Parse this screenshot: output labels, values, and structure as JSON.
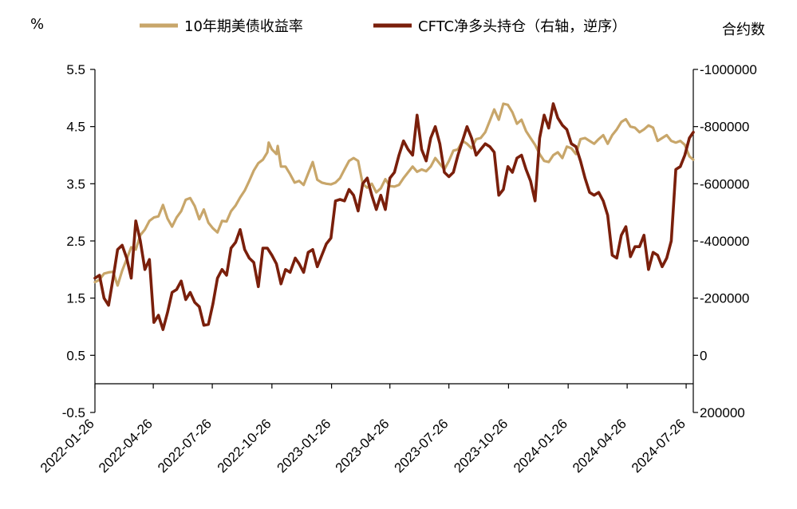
{
  "chart_data": {
    "type": "line",
    "left_axis_unit": "%",
    "right_axis_unit": "合约数",
    "left_ylim": [
      -0.5,
      5.5
    ],
    "left_ticks": [
      "5.5",
      "4.5",
      "3.5",
      "2.5",
      "1.5",
      "0.5",
      "-0.5"
    ],
    "right_ylim": [
      -1000000,
      200000
    ],
    "right_ticks": [
      "-1000000",
      "-800000",
      "-600000",
      "-400000",
      "-200000",
      "0",
      "200000"
    ],
    "right_axis_reversed": true,
    "x_ticks": [
      "2022-01-26",
      "2022-04-26",
      "2022-07-26",
      "2022-10-26",
      "2023-01-26",
      "2023-04-26",
      "2023-07-26",
      "2023-10-26",
      "2024-01-26",
      "2024-04-26",
      "2024-07-26"
    ],
    "x_range": [
      "2022-01-26",
      "2024-08-06"
    ],
    "colors": {
      "yield": "#C8A66A",
      "cftc": "#7A1F0B"
    },
    "series": [
      {
        "name": "10年期美债收益率",
        "axis": "left",
        "points": [
          [
            "2022-01-26",
            1.78
          ],
          [
            "2022-02-02",
            1.82
          ],
          [
            "2022-02-09",
            1.93
          ],
          [
            "2022-02-16",
            1.95
          ],
          [
            "2022-02-23",
            1.96
          ],
          [
            "2022-03-02",
            1.72
          ],
          [
            "2022-03-09",
            1.98
          ],
          [
            "2022-03-16",
            2.18
          ],
          [
            "2022-03-23",
            2.39
          ],
          [
            "2022-03-30",
            2.35
          ],
          [
            "2022-04-06",
            2.6
          ],
          [
            "2022-04-13",
            2.7
          ],
          [
            "2022-04-20",
            2.85
          ],
          [
            "2022-04-27",
            2.91
          ],
          [
            "2022-05-04",
            2.93
          ],
          [
            "2022-05-11",
            3.13
          ],
          [
            "2022-05-18",
            2.89
          ],
          [
            "2022-05-25",
            2.75
          ],
          [
            "2022-06-01",
            2.91
          ],
          [
            "2022-06-08",
            3.02
          ],
          [
            "2022-06-15",
            3.22
          ],
          [
            "2022-06-22",
            3.25
          ],
          [
            "2022-06-29",
            3.11
          ],
          [
            "2022-07-06",
            2.88
          ],
          [
            "2022-07-13",
            3.05
          ],
          [
            "2022-07-20",
            2.82
          ],
          [
            "2022-07-27",
            2.72
          ],
          [
            "2022-08-03",
            2.65
          ],
          [
            "2022-08-10",
            2.85
          ],
          [
            "2022-08-17",
            2.84
          ],
          [
            "2022-08-24",
            3.02
          ],
          [
            "2022-08-31",
            3.12
          ],
          [
            "2022-09-07",
            3.26
          ],
          [
            "2022-09-14",
            3.38
          ],
          [
            "2022-09-21",
            3.55
          ],
          [
            "2022-09-28",
            3.73
          ],
          [
            "2022-10-05",
            3.86
          ],
          [
            "2022-10-12",
            3.92
          ],
          [
            "2022-10-19",
            4.05
          ],
          [
            "2022-10-21",
            4.22
          ],
          [
            "2022-10-26",
            4.1
          ],
          [
            "2022-11-02",
            4.02
          ],
          [
            "2022-11-04",
            4.16
          ],
          [
            "2022-11-09",
            3.8
          ],
          [
            "2022-11-16",
            3.8
          ],
          [
            "2022-11-23",
            3.67
          ],
          [
            "2022-11-30",
            3.52
          ],
          [
            "2022-12-07",
            3.55
          ],
          [
            "2022-12-14",
            3.48
          ],
          [
            "2022-12-21",
            3.68
          ],
          [
            "2022-12-28",
            3.88
          ],
          [
            "2023-01-04",
            3.57
          ],
          [
            "2023-01-11",
            3.52
          ],
          [
            "2023-01-18",
            3.5
          ],
          [
            "2023-01-25",
            3.49
          ],
          [
            "2023-02-01",
            3.52
          ],
          [
            "2023-02-08",
            3.6
          ],
          [
            "2023-02-15",
            3.75
          ],
          [
            "2023-02-22",
            3.9
          ],
          [
            "2023-03-01",
            3.95
          ],
          [
            "2023-03-08",
            3.9
          ],
          [
            "2023-03-15",
            3.5
          ],
          [
            "2023-03-22",
            3.43
          ],
          [
            "2023-03-29",
            3.5
          ],
          [
            "2023-04-05",
            3.35
          ],
          [
            "2023-04-12",
            3.42
          ],
          [
            "2023-04-19",
            3.58
          ],
          [
            "2023-04-26",
            3.46
          ],
          [
            "2023-05-03",
            3.45
          ],
          [
            "2023-05-10",
            3.48
          ],
          [
            "2023-05-17",
            3.6
          ],
          [
            "2023-05-24",
            3.7
          ],
          [
            "2023-05-31",
            3.8
          ],
          [
            "2023-06-07",
            3.71
          ],
          [
            "2023-06-14",
            3.75
          ],
          [
            "2023-06-21",
            3.72
          ],
          [
            "2023-06-28",
            3.8
          ],
          [
            "2023-07-05",
            3.95
          ],
          [
            "2023-07-12",
            3.85
          ],
          [
            "2023-07-19",
            3.75
          ],
          [
            "2023-07-26",
            3.9
          ],
          [
            "2023-08-02",
            4.08
          ],
          [
            "2023-08-09",
            4.1
          ],
          [
            "2023-08-16",
            4.25
          ],
          [
            "2023-08-23",
            4.2
          ],
          [
            "2023-08-30",
            4.12
          ],
          [
            "2023-09-06",
            4.28
          ],
          [
            "2023-09-13",
            4.3
          ],
          [
            "2023-09-20",
            4.4
          ],
          [
            "2023-09-27",
            4.6
          ],
          [
            "2023-10-04",
            4.8
          ],
          [
            "2023-10-11",
            4.62
          ],
          [
            "2023-10-18",
            4.9
          ],
          [
            "2023-10-25",
            4.88
          ],
          [
            "2023-11-01",
            4.75
          ],
          [
            "2023-11-08",
            4.55
          ],
          [
            "2023-11-15",
            4.62
          ],
          [
            "2023-11-22",
            4.42
          ],
          [
            "2023-11-29",
            4.3
          ],
          [
            "2023-12-06",
            4.18
          ],
          [
            "2023-12-13",
            4.02
          ],
          [
            "2023-12-20",
            3.9
          ],
          [
            "2023-12-27",
            3.88
          ],
          [
            "2024-01-03",
            4.0
          ],
          [
            "2024-01-10",
            4.05
          ],
          [
            "2024-01-17",
            3.95
          ],
          [
            "2024-01-24",
            4.15
          ],
          [
            "2024-01-31",
            4.12
          ],
          [
            "2024-02-07",
            4.02
          ],
          [
            "2024-02-14",
            4.28
          ],
          [
            "2024-02-21",
            4.3
          ],
          [
            "2024-02-28",
            4.25
          ],
          [
            "2024-03-06",
            4.2
          ],
          [
            "2024-03-13",
            4.28
          ],
          [
            "2024-03-20",
            4.35
          ],
          [
            "2024-03-27",
            4.2
          ],
          [
            "2024-04-03",
            4.35
          ],
          [
            "2024-04-10",
            4.45
          ],
          [
            "2024-04-17",
            4.58
          ],
          [
            "2024-04-24",
            4.63
          ],
          [
            "2024-05-01",
            4.5
          ],
          [
            "2024-05-08",
            4.48
          ],
          [
            "2024-05-15",
            4.4
          ],
          [
            "2024-05-22",
            4.45
          ],
          [
            "2024-05-29",
            4.52
          ],
          [
            "2024-06-05",
            4.48
          ],
          [
            "2024-06-12",
            4.25
          ],
          [
            "2024-06-19",
            4.3
          ],
          [
            "2024-06-26",
            4.35
          ],
          [
            "2024-07-03",
            4.25
          ],
          [
            "2024-07-10",
            4.22
          ],
          [
            "2024-07-17",
            4.25
          ],
          [
            "2024-07-24",
            4.18
          ],
          [
            "2024-07-31",
            3.98
          ],
          [
            "2024-08-06",
            3.92
          ]
        ]
      },
      {
        "name": "CFTC净多头持仓（右轴，逆序）",
        "axis": "right",
        "points": [
          [
            "2022-01-26",
            -270000
          ],
          [
            "2022-02-02",
            -280000
          ],
          [
            "2022-02-09",
            -200000
          ],
          [
            "2022-02-16",
            -175000
          ],
          [
            "2022-02-23",
            -270000
          ],
          [
            "2022-03-02",
            -370000
          ],
          [
            "2022-03-09",
            -385000
          ],
          [
            "2022-03-16",
            -340000
          ],
          [
            "2022-03-23",
            -270000
          ],
          [
            "2022-03-30",
            -470000
          ],
          [
            "2022-04-06",
            -400000
          ],
          [
            "2022-04-13",
            -300000
          ],
          [
            "2022-04-20",
            -335000
          ],
          [
            "2022-04-27",
            -115000
          ],
          [
            "2022-05-04",
            -140000
          ],
          [
            "2022-05-11",
            -90000
          ],
          [
            "2022-05-18",
            -150000
          ],
          [
            "2022-05-25",
            -220000
          ],
          [
            "2022-06-01",
            -230000
          ],
          [
            "2022-06-08",
            -260000
          ],
          [
            "2022-06-15",
            -195000
          ],
          [
            "2022-06-22",
            -220000
          ],
          [
            "2022-06-29",
            -185000
          ],
          [
            "2022-07-06",
            -170000
          ],
          [
            "2022-07-13",
            -105000
          ],
          [
            "2022-07-20",
            -108000
          ],
          [
            "2022-07-27",
            -180000
          ],
          [
            "2022-08-03",
            -270000
          ],
          [
            "2022-08-10",
            -300000
          ],
          [
            "2022-08-17",
            -280000
          ],
          [
            "2022-08-24",
            -375000
          ],
          [
            "2022-08-31",
            -395000
          ],
          [
            "2022-09-07",
            -440000
          ],
          [
            "2022-09-14",
            -370000
          ],
          [
            "2022-09-21",
            -340000
          ],
          [
            "2022-09-28",
            -325000
          ],
          [
            "2022-10-05",
            -240000
          ],
          [
            "2022-10-12",
            -375000
          ],
          [
            "2022-10-19",
            -375000
          ],
          [
            "2022-10-26",
            -350000
          ],
          [
            "2022-11-02",
            -320000
          ],
          [
            "2022-11-09",
            -250000
          ],
          [
            "2022-11-16",
            -300000
          ],
          [
            "2022-11-23",
            -290000
          ],
          [
            "2022-12-01",
            -340000
          ],
          [
            "2022-12-07",
            -320000
          ],
          [
            "2022-12-14",
            -290000
          ],
          [
            "2022-12-21",
            -360000
          ],
          [
            "2022-12-28",
            -370000
          ],
          [
            "2023-01-04",
            -310000
          ],
          [
            "2023-01-11",
            -350000
          ],
          [
            "2023-01-18",
            -390000
          ],
          [
            "2023-01-25",
            -410000
          ],
          [
            "2023-02-01",
            -540000
          ],
          [
            "2023-02-08",
            -545000
          ],
          [
            "2023-02-15",
            -540000
          ],
          [
            "2023-02-22",
            -580000
          ],
          [
            "2023-03-01",
            -560000
          ],
          [
            "2023-03-08",
            -505000
          ],
          [
            "2023-03-15",
            -600000
          ],
          [
            "2023-03-22",
            -620000
          ],
          [
            "2023-03-29",
            -560000
          ],
          [
            "2023-04-05",
            -510000
          ],
          [
            "2023-04-12",
            -560000
          ],
          [
            "2023-04-19",
            -510000
          ],
          [
            "2023-04-26",
            -620000
          ],
          [
            "2023-05-03",
            -640000
          ],
          [
            "2023-05-10",
            -700000
          ],
          [
            "2023-05-17",
            -750000
          ],
          [
            "2023-05-24",
            -720000
          ],
          [
            "2023-05-31",
            -700000
          ],
          [
            "2023-06-07",
            -840000
          ],
          [
            "2023-06-14",
            -720000
          ],
          [
            "2023-06-21",
            -680000
          ],
          [
            "2023-06-28",
            -760000
          ],
          [
            "2023-07-05",
            -800000
          ],
          [
            "2023-07-12",
            -740000
          ],
          [
            "2023-07-19",
            -640000
          ],
          [
            "2023-07-26",
            -625000
          ],
          [
            "2023-08-02",
            -640000
          ],
          [
            "2023-08-09",
            -700000
          ],
          [
            "2023-08-16",
            -750000
          ],
          [
            "2023-08-23",
            -800000
          ],
          [
            "2023-08-30",
            -760000
          ],
          [
            "2023-09-06",
            -700000
          ],
          [
            "2023-09-13",
            -720000
          ],
          [
            "2023-09-20",
            -740000
          ],
          [
            "2023-09-27",
            -730000
          ],
          [
            "2023-10-04",
            -710000
          ],
          [
            "2023-10-11",
            -560000
          ],
          [
            "2023-10-18",
            -580000
          ],
          [
            "2023-10-25",
            -660000
          ],
          [
            "2023-11-01",
            -640000
          ],
          [
            "2023-11-08",
            -690000
          ],
          [
            "2023-11-15",
            -700000
          ],
          [
            "2023-11-22",
            -650000
          ],
          [
            "2023-11-29",
            -610000
          ],
          [
            "2023-12-06",
            -540000
          ],
          [
            "2023-12-13",
            -760000
          ],
          [
            "2023-12-20",
            -840000
          ],
          [
            "2023-12-27",
            -795000
          ],
          [
            "2024-01-03",
            -880000
          ],
          [
            "2024-01-10",
            -830000
          ],
          [
            "2024-01-17",
            -805000
          ],
          [
            "2024-01-24",
            -790000
          ],
          [
            "2024-01-31",
            -740000
          ],
          [
            "2024-02-07",
            -730000
          ],
          [
            "2024-02-14",
            -680000
          ],
          [
            "2024-02-21",
            -620000
          ],
          [
            "2024-02-28",
            -570000
          ],
          [
            "2024-03-06",
            -560000
          ],
          [
            "2024-03-13",
            -570000
          ],
          [
            "2024-03-20",
            -540000
          ],
          [
            "2024-03-27",
            -490000
          ],
          [
            "2024-04-03",
            -350000
          ],
          [
            "2024-04-10",
            -340000
          ],
          [
            "2024-04-17",
            -420000
          ],
          [
            "2024-04-24",
            -450000
          ],
          [
            "2024-05-01",
            -345000
          ],
          [
            "2024-05-08",
            -380000
          ],
          [
            "2024-05-15",
            -380000
          ],
          [
            "2024-05-22",
            -420000
          ],
          [
            "2024-05-29",
            -300000
          ],
          [
            "2024-06-05",
            -360000
          ],
          [
            "2024-06-12",
            -350000
          ],
          [
            "2024-06-19",
            -310000
          ],
          [
            "2024-06-26",
            -340000
          ],
          [
            "2024-07-03",
            -400000
          ],
          [
            "2024-07-10",
            -650000
          ],
          [
            "2024-07-17",
            -660000
          ],
          [
            "2024-07-24",
            -700000
          ],
          [
            "2024-07-31",
            -760000
          ],
          [
            "2024-08-06",
            -780000
          ]
        ]
      }
    ]
  }
}
